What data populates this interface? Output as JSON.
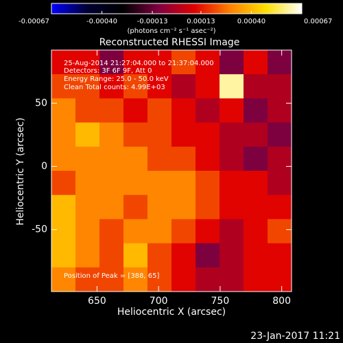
{
  "chart_data": {
    "type": "heatmap",
    "title": "Reconstructed RHESSI Image",
    "xlabel": "Heliocentric X (arcsec)",
    "ylabel": "Heliocentric Y (arcsec)",
    "colorbar_label": "(photons cm⁻² s⁻¹ asec⁻²)",
    "annotations": [
      "25-Aug-2014 21:27:04.000 to 21:37:04.000",
      "Detectors: 3F 6F 9F, Att 0",
      "Energy Range: 25.0 - 50.0 keV",
      "Clean     Total counts: 4.99E+03"
    ],
    "peak_label": "Position of Peak = [388, 65]",
    "timestamp": "23-Jan-2017 11:21",
    "colormap": [
      "#0000ff",
      "#000033",
      "#000000",
      "#800040",
      "#e00000",
      "#ff8000",
      "#ffe000",
      "#ffffff"
    ],
    "zlim": [
      -0.00067,
      0.00067
    ],
    "zticks": [
      -0.00067,
      {
        "value": -0.0004,
        "label": "-0.00040"
      },
      -0.00013,
      0.00013,
      {
        "value": 0.0004,
        "label": "0.00040"
      },
      0.00067
    ],
    "xlim": [
      613,
      808
    ],
    "ylim": [
      -99,
      92
    ],
    "xticks": [
      650,
      700,
      750,
      800
    ],
    "yticks": [
      50,
      0,
      -50
    ],
    "z": [
      [
        0.0001,
        0.0001,
        -0.0001,
        0.0001,
        0.0001,
        0.0002,
        0.0001,
        -0.0001,
        0.0001,
        -0.0001
      ],
      [
        0.0002,
        0.0002,
        0.0001,
        0.0002,
        0.0001,
        0,
        0.0001,
        0.0006,
        0,
        0
      ],
      [
        0.0003,
        0.0002,
        0.0002,
        0.0001,
        0.0002,
        0.0001,
        0,
        0.0001,
        -0.0001,
        0
      ],
      [
        0.0003,
        0.0004,
        0.0003,
        0.0002,
        0.0002,
        0.0001,
        0.0001,
        0,
        0,
        -0.0001
      ],
      [
        0.0003,
        0.0003,
        0.0003,
        0.0003,
        0.0002,
        0.0002,
        0.0001,
        0,
        -0.0001,
        0
      ],
      [
        0.0002,
        0.0003,
        0.0003,
        0.0003,
        0.0003,
        0.0003,
        0.0002,
        0.0001,
        0.0001,
        0
      ],
      [
        0.0004,
        0.0003,
        0.0003,
        0.0002,
        0.0003,
        0.0003,
        0.0002,
        0.0001,
        0.0001,
        0.0001
      ],
      [
        0.0004,
        0.0003,
        0.0002,
        0.0003,
        0.0003,
        0.0002,
        0.0001,
        0,
        0.0001,
        0.0002
      ],
      [
        0.0004,
        0.0003,
        0.0002,
        0.0004,
        0.0002,
        0.0001,
        -0.0001,
        0,
        0.0001,
        0.0001
      ],
      [
        0.0003,
        0.0002,
        0.0002,
        0.0003,
        0.0002,
        0.0001,
        0,
        0,
        0.0001,
        0.0001
      ]
    ]
  }
}
